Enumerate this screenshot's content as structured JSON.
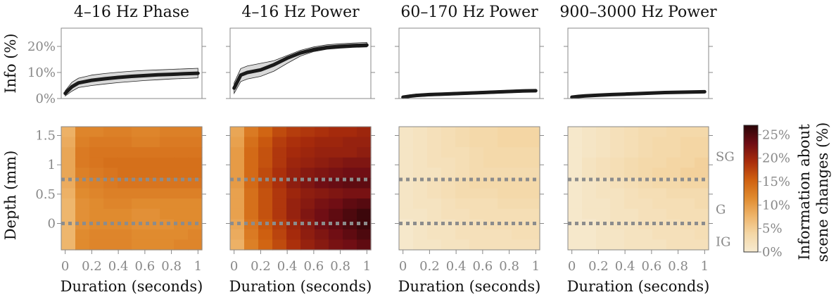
{
  "figure": {
    "cmap": [
      "#f6ead0",
      "#f4d7a6",
      "#eeb46a",
      "#e08a2e",
      "#cf6010",
      "#a82c0c",
      "#6e0d14",
      "#2a0508"
    ],
    "depth_lines": [
      0.75,
      0
    ],
    "region_labels": [
      "SG",
      "G",
      "IG"
    ],
    "colorbar": {
      "label_lines": [
        "Information about",
        "scene changes (%)"
      ],
      "ticks": [
        0,
        5,
        10,
        15,
        20,
        25
      ],
      "tick_labels": [
        "0%",
        "5%",
        "10%",
        "15%",
        "20%",
        "25%"
      ],
      "range": [
        0,
        27
      ]
    },
    "top_ylabel": "Info (%)",
    "top_yticks": [
      0,
      10,
      20
    ],
    "top_ytick_labels": [
      "0%",
      "10%",
      "20%"
    ],
    "top_ylim": [
      0,
      27
    ],
    "bottom_ylabel": "Depth (mm)",
    "bottom_yticks": [
      0,
      0.5,
      1,
      1.5
    ],
    "bottom_ytick_labels": [
      "0",
      "0.5",
      "1",
      "1.5"
    ],
    "bottom_ylim": [
      -0.45,
      1.65
    ],
    "xlabel": "Duration (seconds)",
    "xticks": [
      0,
      0.2,
      0.4,
      0.6,
      0.8,
      1
    ],
    "xtick_labels": [
      "0",
      "0.2",
      "0.4",
      "0.6",
      "0.8",
      "1"
    ],
    "xlim": [
      -0.03,
      1.03
    ]
  },
  "chart_data": [
    {
      "type": "line",
      "title": "4–16 Hz  Phase",
      "x": [
        0,
        0.05,
        0.1,
        0.2,
        0.3,
        0.4,
        0.5,
        0.6,
        0.7,
        0.8,
        0.9,
        1.0
      ],
      "series": [
        {
          "values": [
            2,
            4.5,
            6,
            7,
            7.6,
            8.1,
            8.5,
            8.8,
            9.1,
            9.3,
            9.5,
            9.7
          ],
          "lower": [
            1,
            2.8,
            4.2,
            5,
            5.6,
            6.1,
            6.5,
            6.9,
            7.2,
            7.5,
            7.7,
            7.9
          ],
          "upper": [
            3,
            6.2,
            7.8,
            9,
            9.6,
            10.1,
            10.5,
            10.8,
            11.0,
            11.2,
            11.4,
            11.6
          ]
        }
      ],
      "ylim": [
        0,
        27
      ],
      "heatmap": {
        "type": "heatmap",
        "x_range": [
          -0.03,
          1.03
        ],
        "y_range": [
          -0.45,
          1.65
        ],
        "values": [
          [
            8.0,
            12.0,
            12.0,
            12.5,
            12.5,
            12.0,
            12.0,
            12.5,
            12.5,
            12.5
          ],
          [
            8.5,
            12.5,
            13.0,
            13.0,
            13.0,
            12.5,
            12.5,
            13.0,
            13.0,
            13.0
          ],
          [
            9.0,
            13.0,
            13.5,
            13.5,
            13.5,
            13.5,
            13.5,
            13.5,
            13.5,
            13.5
          ],
          [
            9.0,
            13.0,
            13.5,
            14.0,
            14.0,
            14.0,
            14.0,
            14.0,
            14.0,
            14.0
          ],
          [
            9.0,
            12.5,
            13.0,
            13.5,
            14.0,
            14.0,
            14.0,
            14.0,
            14.0,
            14.0
          ],
          [
            8.5,
            12.0,
            12.5,
            13.0,
            13.5,
            13.5,
            13.5,
            13.5,
            13.5,
            13.5
          ],
          [
            8.0,
            11.5,
            12.0,
            12.5,
            12.5,
            12.5,
            12.5,
            12.5,
            12.5,
            12.5
          ],
          [
            7.5,
            11.0,
            11.5,
            12.0,
            12.0,
            11.5,
            11.5,
            11.5,
            11.5,
            11.5
          ],
          [
            7.5,
            11.0,
            11.5,
            11.5,
            11.5,
            11.0,
            11.0,
            11.5,
            11.5,
            11.5
          ],
          [
            7.5,
            11.0,
            11.5,
            11.5,
            11.5,
            11.0,
            11.0,
            11.0,
            11.5,
            11.5
          ],
          [
            7.5,
            11.5,
            12.0,
            12.0,
            12.0,
            11.5,
            11.5,
            11.5,
            11.5,
            12.0
          ],
          [
            7.5,
            11.5,
            12.0,
            12.0,
            12.0,
            11.5,
            11.5,
            11.5,
            12.0,
            12.0
          ]
        ]
      }
    },
    {
      "type": "line",
      "title": "4–16 Hz  Power",
      "x": [
        0,
        0.05,
        0.1,
        0.2,
        0.3,
        0.4,
        0.5,
        0.6,
        0.7,
        0.8,
        0.9,
        1.0
      ],
      "series": [
        {
          "values": [
            4,
            9,
            10,
            11,
            13,
            15.5,
            17.5,
            18.8,
            19.6,
            20,
            20.3,
            20.5
          ],
          "lower": [
            2,
            6.5,
            7.5,
            8.5,
            10.5,
            13.5,
            16.3,
            18,
            18.9,
            19.3,
            19.6,
            19.8
          ],
          "upper": [
            6,
            11.5,
            12.5,
            13.5,
            14.5,
            16.5,
            18.5,
            19.8,
            20.6,
            21,
            21.3,
            21.5
          ]
        }
      ],
      "ylim": [
        0,
        27
      ],
      "heatmap": {
        "type": "heatmap",
        "x_range": [
          -0.03,
          1.03
        ],
        "y_range": [
          -0.45,
          1.65
        ],
        "values": [
          [
            9.0,
            13.0,
            15.0,
            17.0,
            18.0,
            18.5,
            19.0,
            19.5,
            19.5,
            20.0
          ],
          [
            9.5,
            14.0,
            16.0,
            18.0,
            19.0,
            19.5,
            20.0,
            20.0,
            20.5,
            20.5
          ],
          [
            10.0,
            14.5,
            16.5,
            18.5,
            19.5,
            20.0,
            20.5,
            20.5,
            20.5,
            21.0
          ],
          [
            10.0,
            14.5,
            16.5,
            18.5,
            20.0,
            20.5,
            21.0,
            21.5,
            22.0,
            22.0
          ],
          [
            10.0,
            14.5,
            17.0,
            19.0,
            20.5,
            21.5,
            22.0,
            22.5,
            23.0,
            23.0
          ],
          [
            10.0,
            14.5,
            17.0,
            19.0,
            21.0,
            22.0,
            23.0,
            23.5,
            24.0,
            24.0
          ],
          [
            9.5,
            14.0,
            16.5,
            18.5,
            20.0,
            21.0,
            21.5,
            22.0,
            22.5,
            22.5
          ],
          [
            9.5,
            14.0,
            16.5,
            18.5,
            20.5,
            21.5,
            22.5,
            23.0,
            24.0,
            24.5
          ],
          [
            9.5,
            14.0,
            16.5,
            18.5,
            20.5,
            22.0,
            23.0,
            24.0,
            25.0,
            26.0
          ],
          [
            9.0,
            13.5,
            16.0,
            18.0,
            20.0,
            21.5,
            23.0,
            24.0,
            25.0,
            26.0
          ],
          [
            8.5,
            13.0,
            15.5,
            17.5,
            19.5,
            21.0,
            22.0,
            23.0,
            24.0,
            25.0
          ],
          [
            8.0,
            12.5,
            15.0,
            17.0,
            19.0,
            20.5,
            21.5,
            22.5,
            23.0,
            24.0
          ]
        ]
      }
    },
    {
      "type": "line",
      "title": "60–170 Hz  Power",
      "x": [
        0,
        0.05,
        0.1,
        0.2,
        0.3,
        0.4,
        0.5,
        0.6,
        0.7,
        0.8,
        0.9,
        1.0
      ],
      "series": [
        {
          "values": [
            0.5,
            0.9,
            1.2,
            1.5,
            1.7,
            1.9,
            2.1,
            2.3,
            2.5,
            2.7,
            2.9,
            3.0
          ],
          "lower": [
            0.1,
            0.4,
            0.7,
            1.0,
            1.2,
            1.4,
            1.6,
            1.8,
            2.0,
            2.2,
            2.4,
            2.5
          ],
          "upper": [
            0.9,
            1.4,
            1.7,
            2.0,
            2.2,
            2.4,
            2.6,
            2.8,
            3.0,
            3.2,
            3.4,
            3.5
          ]
        }
      ],
      "ylim": [
        0,
        27
      ],
      "heatmap": {
        "type": "heatmap",
        "x_range": [
          -0.03,
          1.03
        ],
        "y_range": [
          -0.45,
          1.65
        ],
        "values": [
          [
            1.0,
            1.5,
            2.0,
            2.5,
            3.0,
            3.5,
            3.5,
            4.0,
            4.0,
            4.0
          ],
          [
            1.0,
            1.5,
            2.0,
            2.5,
            3.0,
            3.5,
            3.5,
            4.0,
            4.0,
            4.0
          ],
          [
            1.0,
            1.5,
            2.0,
            2.5,
            2.5,
            3.0,
            3.5,
            3.5,
            3.5,
            3.5
          ],
          [
            1.0,
            1.5,
            2.0,
            2.0,
            2.5,
            3.0,
            3.5,
            3.5,
            3.5,
            3.5
          ],
          [
            1.0,
            1.5,
            1.5,
            2.0,
            2.5,
            3.0,
            3.0,
            3.0,
            3.0,
            3.0
          ],
          [
            1.0,
            1.5,
            2.0,
            2.5,
            3.0,
            3.5,
            3.5,
            3.5,
            3.5,
            3.5
          ],
          [
            1.0,
            1.5,
            2.0,
            2.5,
            3.0,
            3.0,
            3.0,
            3.5,
            3.5,
            3.5
          ],
          [
            1.0,
            1.5,
            1.5,
            2.0,
            2.5,
            2.5,
            2.5,
            3.0,
            3.0,
            3.0
          ],
          [
            1.0,
            1.0,
            1.5,
            2.0,
            2.0,
            2.5,
            2.5,
            2.5,
            2.5,
            2.5
          ],
          [
            0.5,
            1.0,
            1.5,
            1.5,
            2.0,
            2.0,
            2.5,
            2.5,
            2.5,
            2.5
          ],
          [
            0.5,
            1.0,
            1.5,
            1.5,
            2.0,
            2.0,
            2.0,
            2.0,
            2.5,
            2.5
          ],
          [
            0.5,
            1.0,
            1.0,
            1.5,
            1.5,
            2.0,
            2.0,
            2.0,
            2.0,
            2.0
          ]
        ]
      }
    },
    {
      "type": "line",
      "title": "900–3000 Hz  Power",
      "x": [
        0,
        0.05,
        0.1,
        0.2,
        0.3,
        0.4,
        0.5,
        0.6,
        0.7,
        0.8,
        0.9,
        1.0
      ],
      "series": [
        {
          "values": [
            0.5,
            0.8,
            1.0,
            1.3,
            1.5,
            1.7,
            1.9,
            2.1,
            2.3,
            2.4,
            2.5,
            2.6
          ],
          "lower": [
            0.1,
            0.4,
            0.6,
            0.9,
            1.1,
            1.3,
            1.5,
            1.7,
            1.9,
            2.0,
            2.1,
            2.2
          ],
          "upper": [
            0.9,
            1.2,
            1.4,
            1.7,
            1.9,
            2.1,
            2.3,
            2.5,
            2.7,
            2.8,
            2.9,
            3.0
          ]
        }
      ],
      "ylim": [
        0,
        27
      ],
      "heatmap": {
        "type": "heatmap",
        "x_range": [
          -0.03,
          1.03
        ],
        "y_range": [
          -0.45,
          1.65
        ],
        "values": [
          [
            0.5,
            1.0,
            1.5,
            2.0,
            2.5,
            3.0,
            3.0,
            3.5,
            3.5,
            3.5
          ],
          [
            0.5,
            1.0,
            1.5,
            2.0,
            2.5,
            3.0,
            3.5,
            3.5,
            4.0,
            4.0
          ],
          [
            0.5,
            1.0,
            1.5,
            2.0,
            2.5,
            3.0,
            3.5,
            3.5,
            4.0,
            4.0
          ],
          [
            0.5,
            1.5,
            2.0,
            2.5,
            3.0,
            3.5,
            3.5,
            4.0,
            4.0,
            4.5
          ],
          [
            0.5,
            1.5,
            2.0,
            2.5,
            3.0,
            3.5,
            4.0,
            4.0,
            4.5,
            4.5
          ],
          [
            0.5,
            1.0,
            1.5,
            2.0,
            2.5,
            3.0,
            3.5,
            3.5,
            4.0,
            4.0
          ],
          [
            0.5,
            1.0,
            1.5,
            1.5,
            2.0,
            2.5,
            2.5,
            3.0,
            3.0,
            3.0
          ],
          [
            0.5,
            1.0,
            1.0,
            1.5,
            2.0,
            2.0,
            2.5,
            2.5,
            2.5,
            3.0
          ],
          [
            0.5,
            1.0,
            1.0,
            1.5,
            1.5,
            2.0,
            2.0,
            2.5,
            2.5,
            2.5
          ],
          [
            0.5,
            0.5,
            1.0,
            1.5,
            1.5,
            2.0,
            2.0,
            2.0,
            2.5,
            2.5
          ],
          [
            0.5,
            0.5,
            1.0,
            1.0,
            1.5,
            1.5,
            2.0,
            2.0,
            2.0,
            2.5
          ],
          [
            0.5,
            0.5,
            1.0,
            1.0,
            1.5,
            1.5,
            1.5,
            2.0,
            2.0,
            2.0
          ]
        ]
      }
    }
  ]
}
